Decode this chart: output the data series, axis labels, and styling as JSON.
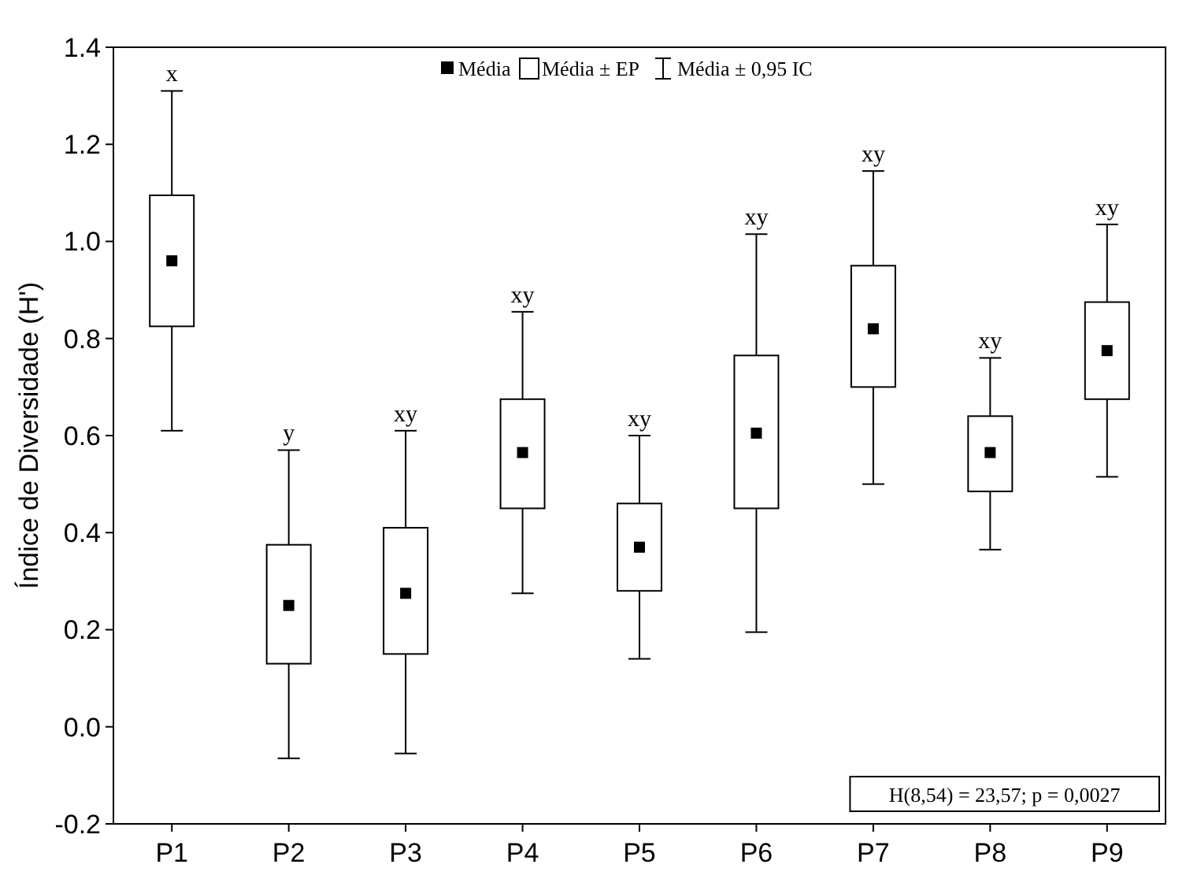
{
  "chart_data": {
    "type": "box",
    "ylabel": "Índice de Diversidade (H')",
    "categories": [
      "P1",
      "P2",
      "P3",
      "P4",
      "P5",
      "P6",
      "P7",
      "P8",
      "P9"
    ],
    "boxes": [
      {
        "low": 0.61,
        "q1": 0.825,
        "q3": 1.095,
        "high": 1.31,
        "mean": 0.96
      },
      {
        "low": -0.065,
        "q1": 0.13,
        "q3": 0.375,
        "high": 0.57,
        "mean": 0.25
      },
      {
        "low": -0.055,
        "q1": 0.15,
        "q3": 0.41,
        "high": 0.61,
        "mean": 0.275
      },
      {
        "low": 0.275,
        "q1": 0.45,
        "q3": 0.675,
        "high": 0.855,
        "mean": 0.565
      },
      {
        "low": 0.14,
        "q1": 0.28,
        "q3": 0.46,
        "high": 0.6,
        "mean": 0.37
      },
      {
        "low": 0.195,
        "q1": 0.45,
        "q3": 0.765,
        "high": 1.015,
        "mean": 0.605
      },
      {
        "low": 0.5,
        "q1": 0.7,
        "q3": 0.95,
        "high": 1.145,
        "mean": 0.82
      },
      {
        "low": 0.365,
        "q1": 0.485,
        "q3": 0.64,
        "high": 0.76,
        "mean": 0.565
      },
      {
        "low": 0.515,
        "q1": 0.675,
        "q3": 0.875,
        "high": 1.035,
        "mean": 0.775
      }
    ],
    "color": "#000000",
    "ylim": [
      -0.2,
      1.4
    ],
    "yticks": [
      {
        "value": -0.2,
        "label": "-0.2"
      },
      {
        "value": 0,
        "label": "0.0"
      },
      {
        "value": 0.2,
        "label": "0.2"
      },
      {
        "value": 0.4,
        "label": "0.4"
      },
      {
        "value": 0.6,
        "label": "0.6"
      },
      {
        "value": 0.8,
        "label": "0.8"
      },
      {
        "value": 1,
        "label": "1.0"
      },
      {
        "value": 1.2,
        "label": "1.2"
      },
      {
        "value": 1.4,
        "label": "1.4"
      }
    ],
    "grid": false,
    "annotations": [
      "Média",
      "Média ± EP",
      "Média ± 0,95 IC",
      "H(8,54) = 23,57; p = 0,0027",
      {
        "text": "x",
        "x": "P1",
        "y": 1.31
      },
      {
        "text": "y",
        "x": "P2",
        "y": 0.57
      },
      {
        "text": "xy",
        "x": "P3",
        "y": 0.61
      },
      {
        "text": "xy",
        "x": "P4",
        "y": 0.855
      },
      {
        "text": "xy",
        "x": "P5",
        "y": 0.6
      },
      {
        "text": "xy",
        "x": "P6",
        "y": 1.015
      },
      {
        "text": "xy",
        "x": "P7",
        "y": 1.145
      },
      {
        "text": "xy",
        "x": "P8",
        "y": 0.76
      },
      {
        "text": "xy",
        "x": "P9",
        "y": 1.035
      }
    ]
  }
}
